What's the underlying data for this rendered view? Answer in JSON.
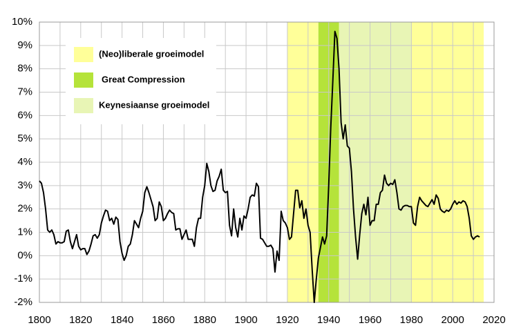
{
  "chart_data": {
    "type": "line",
    "color": "#000000",
    "legend": [
      {
        "name": "(Neo)liberale groeimodel",
        "color": "#ffff99"
      },
      {
        "name": "Great Compression",
        "color": "#b5e33a"
      },
      {
        "name": "Keynesiaanse groeimodel",
        "color": "#e8f5b5"
      }
    ],
    "bands": [
      {
        "start": 1920,
        "end": 1935,
        "legend": 0
      },
      {
        "start": 1935,
        "end": 1945,
        "legend": 1
      },
      {
        "start": 1945,
        "end": 1980,
        "legend": 2
      },
      {
        "start": 1980,
        "end": 2015,
        "legend": 0
      }
    ],
    "xlim": [
      1800,
      2020
    ],
    "xticks": [
      1800,
      1820,
      1840,
      1860,
      1880,
      1900,
      1920,
      1940,
      1960,
      1980,
      2000,
      2020
    ],
    "xgrid": [
      1800,
      1810,
      1820,
      1830,
      1840,
      1850,
      1860,
      1870,
      1880,
      1890,
      1900,
      1910,
      1920,
      1930,
      1940,
      1950,
      1960,
      1970,
      1980,
      1990,
      2000,
      2010,
      2020
    ],
    "ylim": [
      -2,
      10
    ],
    "yticks": [
      {
        "value": -2,
        "label": "-2%"
      },
      {
        "value": -1,
        "label": "-1%"
      },
      {
        "value": 0,
        "label": "0%"
      },
      {
        "value": 1,
        "label": "1%"
      },
      {
        "value": 2,
        "label": "2%"
      },
      {
        "value": 3,
        "label": "3%"
      },
      {
        "value": 4,
        "label": "4%"
      },
      {
        "value": 5,
        "label": "5%"
      },
      {
        "value": 6,
        "label": "6%"
      },
      {
        "value": 7,
        "label": "7%"
      },
      {
        "value": 8,
        "label": "8%"
      },
      {
        "value": 9,
        "label": "9%"
      },
      {
        "value": 10,
        "label": "10%"
      }
    ],
    "grid": true,
    "x": [
      1800,
      1801,
      1802,
      1803,
      1804,
      1805,
      1806,
      1807,
      1808,
      1809,
      1810,
      1811,
      1812,
      1813,
      1814,
      1815,
      1816,
      1817,
      1818,
      1819,
      1820,
      1821,
      1822,
      1823,
      1824,
      1825,
      1826,
      1827,
      1828,
      1829,
      1830,
      1831,
      1832,
      1833,
      1834,
      1835,
      1836,
      1837,
      1838,
      1839,
      1840,
      1841,
      1842,
      1843,
      1844,
      1845,
      1846,
      1847,
      1848,
      1849,
      1850,
      1851,
      1852,
      1853,
      1854,
      1855,
      1856,
      1857,
      1858,
      1859,
      1860,
      1861,
      1862,
      1863,
      1864,
      1865,
      1866,
      1867,
      1868,
      1869,
      1870,
      1871,
      1872,
      1873,
      1874,
      1875,
      1876,
      1877,
      1878,
      1879,
      1880,
      1881,
      1882,
      1883,
      1884,
      1885,
      1886,
      1887,
      1888,
      1889,
      1890,
      1891,
      1892,
      1893,
      1894,
      1895,
      1896,
      1897,
      1898,
      1899,
      1900,
      1901,
      1902,
      1903,
      1904,
      1905,
      1906,
      1907,
      1908,
      1909,
      1910,
      1911,
      1912,
      1913,
      1914,
      1915,
      1916,
      1917,
      1918,
      1919,
      1920,
      1921,
      1922,
      1923,
      1924,
      1925,
      1926,
      1927,
      1928,
      1929,
      1930,
      1931,
      1932,
      1933,
      1934,
      1935,
      1936,
      1937,
      1938,
      1939,
      1940,
      1941,
      1942,
      1943,
      1944,
      1945,
      1946,
      1947,
      1948,
      1949,
      1950,
      1951,
      1952,
      1953,
      1954,
      1955,
      1956,
      1957,
      1958,
      1959,
      1960,
      1961,
      1962,
      1963,
      1964,
      1965,
      1966,
      1967,
      1968,
      1969,
      1970,
      1971,
      1972,
      1973,
      1974,
      1975,
      1976,
      1977,
      1978,
      1979,
      1980,
      1981,
      1982,
      1983,
      1984,
      1985,
      1986,
      1987,
      1988,
      1989,
      1990,
      1991,
      1992,
      1993,
      1994,
      1995,
      1996,
      1997,
      1998,
      1999,
      2000,
      2001,
      2002,
      2003,
      2004,
      2005,
      2006,
      2007,
      2008,
      2009,
      2010,
      2011,
      2012,
      2013
    ],
    "values": [
      3.2,
      3.1,
      2.7,
      2.0,
      1.1,
      1.0,
      1.1,
      0.9,
      0.5,
      0.6,
      0.55,
      0.55,
      0.6,
      1.05,
      1.1,
      0.6,
      0.3,
      0.6,
      0.9,
      0.4,
      0.25,
      0.3,
      0.3,
      0.05,
      0.2,
      0.5,
      0.85,
      0.9,
      0.75,
      0.9,
      1.4,
      1.7,
      1.95,
      1.9,
      1.5,
      1.6,
      1.35,
      1.65,
      1.55,
      0.6,
      0.1,
      -0.2,
      0.0,
      0.4,
      0.5,
      0.9,
      1.5,
      1.35,
      1.2,
      1.6,
      1.9,
      2.7,
      2.95,
      2.7,
      2.4,
      2.1,
      1.5,
      1.6,
      2.3,
      2.1,
      1.5,
      1.6,
      1.8,
      1.95,
      1.85,
      1.8,
      1.1,
      1.15,
      1.15,
      0.7,
      0.9,
      1.1,
      0.7,
      0.7,
      0.7,
      0.4,
      1.2,
      1.6,
      1.6,
      2.5,
      3.0,
      3.95,
      3.6,
      3.0,
      2.75,
      2.8,
      3.2,
      3.4,
      3.7,
      2.8,
      2.7,
      2.75,
      1.3,
      0.85,
      2.0,
      1.2,
      0.8,
      1.6,
      1.1,
      1.7,
      1.6,
      2.0,
      2.5,
      2.6,
      2.55,
      3.1,
      2.95,
      0.75,
      0.7,
      0.55,
      0.4,
      0.4,
      0.45,
      0.3,
      -0.7,
      0.2,
      -0.2,
      1.9,
      1.5,
      1.4,
      1.2,
      0.7,
      0.8,
      1.8,
      2.8,
      2.8,
      2.05,
      2.35,
      1.6,
      2.0,
      1.3,
      1.0,
      -0.6,
      -2.0,
      -1.0,
      -0.1,
      0.35,
      0.8,
      0.5,
      0.85,
      3.0,
      5.5,
      7.5,
      9.6,
      9.3,
      8.0,
      5.7,
      5.0,
      5.6,
      4.7,
      4.6,
      3.6,
      2.0,
      0.8,
      -0.15,
      0.9,
      1.8,
      2.2,
      1.75,
      2.5,
      1.3,
      1.5,
      1.5,
      2.2,
      2.2,
      2.7,
      2.8,
      3.45,
      3.1,
      3.0,
      3.1,
      3.05,
      3.25,
      2.7,
      2.0,
      1.95,
      2.1,
      2.15,
      2.15,
      2.1,
      2.1,
      1.4,
      1.3,
      2.1,
      2.5,
      2.35,
      2.25,
      2.15,
      2.1,
      2.25,
      2.4,
      2.2,
      2.6,
      2.45,
      2.0,
      1.9,
      1.85,
      1.95,
      1.9,
      2.0,
      2.2,
      2.35,
      2.2,
      2.3,
      2.25,
      2.35,
      2.3,
      2.1,
      1.6,
      0.85,
      0.7,
      0.8,
      0.85,
      0.8
    ]
  }
}
